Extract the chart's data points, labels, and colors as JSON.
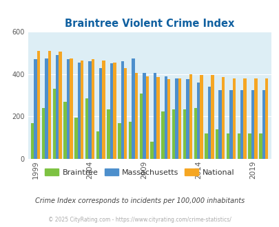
{
  "title": "Braintree Violent Crime Index",
  "title_color": "#1060a0",
  "plot_bg_color": "#ddeef5",
  "fig_bg_color": "#ffffff",
  "ylim": [
    0,
    600
  ],
  "yticks": [
    0,
    200,
    400,
    600
  ],
  "years": [
    1999,
    2000,
    2001,
    2002,
    2003,
    2004,
    2005,
    2006,
    2007,
    2008,
    2009,
    2010,
    2011,
    2012,
    2013,
    2014,
    2015,
    2016,
    2017,
    2018,
    2019,
    2020
  ],
  "xtick_years": [
    1999,
    2004,
    2009,
    2014,
    2019
  ],
  "braintree": [
    170,
    240,
    330,
    270,
    195,
    285,
    130,
    235,
    170,
    175,
    310,
    80,
    225,
    235,
    235,
    240,
    120,
    140,
    120,
    120,
    120,
    120
  ],
  "massachusetts": [
    470,
    475,
    490,
    470,
    455,
    460,
    430,
    450,
    460,
    475,
    405,
    405,
    390,
    380,
    375,
    360,
    340,
    325,
    325,
    325,
    325,
    325
  ],
  "national": [
    510,
    510,
    505,
    475,
    465,
    470,
    465,
    455,
    430,
    405,
    390,
    385,
    375,
    380,
    400,
    395,
    395,
    385,
    380,
    380,
    380,
    380
  ],
  "braintree_color": "#7dc242",
  "massachusetts_color": "#4d8fcc",
  "national_color": "#f5a623",
  "bar_width": 0.28,
  "subtitle": "Crime Index corresponds to incidents per 100,000 inhabitants",
  "subtitle_color": "#444444",
  "footnote": "© 2025 CityRating.com - https://www.cityrating.com/crime-statistics/",
  "footnote_color": "#aaaaaa",
  "legend_labels": [
    "Braintree",
    "Massachusetts",
    "National"
  ],
  "grid_color": "#ffffff"
}
